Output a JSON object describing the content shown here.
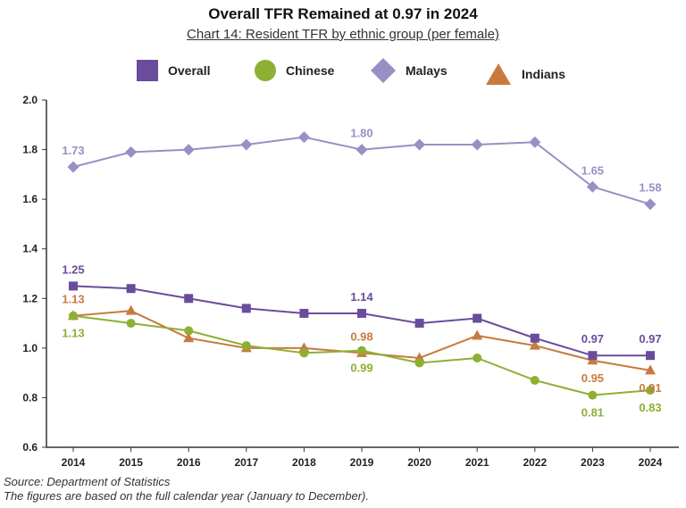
{
  "chart_data": {
    "type": "line",
    "title": "Overall TFR Remained at 0.97 in 2024",
    "subtitle": "Chart 14: Resident TFR by ethnic group (per female)",
    "xlabel": "",
    "ylabel": "",
    "categories": [
      "2014",
      "2015",
      "2016",
      "2017",
      "2018",
      "2019",
      "2020",
      "2021",
      "2022",
      "2023",
      "2024"
    ],
    "ylim": [
      0.6,
      2.0
    ],
    "yticks": [
      "0.6",
      "0.8",
      "1.0",
      "1.2",
      "1.4",
      "1.6",
      "1.8",
      "2.0"
    ],
    "grid": false,
    "legend_position": "top",
    "series": [
      {
        "name": "Overall",
        "marker": "square",
        "color": "#6a4c9c",
        "values": [
          1.25,
          1.24,
          1.2,
          1.16,
          1.14,
          1.14,
          1.1,
          1.12,
          1.04,
          0.97,
          0.97
        ]
      },
      {
        "name": "Chinese",
        "marker": "circle",
        "color": "#8db033",
        "values": [
          1.13,
          1.1,
          1.07,
          1.01,
          0.98,
          0.99,
          0.94,
          0.96,
          0.87,
          0.81,
          0.83
        ]
      },
      {
        "name": "Malays",
        "marker": "diamond",
        "color": "#9a8fc4",
        "values": [
          1.73,
          1.79,
          1.8,
          1.82,
          1.85,
          1.8,
          1.82,
          1.82,
          1.83,
          1.65,
          1.58
        ]
      },
      {
        "name": "Indians",
        "marker": "triangle",
        "color": "#c87a3e",
        "values": [
          1.13,
          1.15,
          1.04,
          1.0,
          1.0,
          0.98,
          0.96,
          1.05,
          1.01,
          0.95,
          0.91
        ]
      }
    ],
    "annotations": [
      {
        "series": "Malays",
        "category": "2014",
        "text": "1.73",
        "placement": "above"
      },
      {
        "series": "Malays",
        "category": "2019",
        "text": "1.80",
        "placement": "above"
      },
      {
        "series": "Malays",
        "category": "2023",
        "text": "1.65",
        "placement": "above"
      },
      {
        "series": "Malays",
        "category": "2024",
        "text": "1.58",
        "placement": "above"
      },
      {
        "series": "Overall",
        "category": "2014",
        "text": "1.25",
        "placement": "above"
      },
      {
        "series": "Overall",
        "category": "2019",
        "text": "1.14",
        "placement": "above"
      },
      {
        "series": "Overall",
        "category": "2023",
        "text": "0.97",
        "placement": "above"
      },
      {
        "series": "Overall",
        "category": "2024",
        "text": "0.97",
        "placement": "above"
      },
      {
        "series": "Indians",
        "category": "2014",
        "text": "1.13",
        "placement": "above"
      },
      {
        "series": "Indians",
        "category": "2019",
        "text": "0.98",
        "placement": "above"
      },
      {
        "series": "Indians",
        "category": "2023",
        "text": "0.95",
        "placement": "below"
      },
      {
        "series": "Indians",
        "category": "2024",
        "text": "0.91",
        "placement": "below"
      },
      {
        "series": "Chinese",
        "category": "2014",
        "text": "1.13",
        "placement": "below"
      },
      {
        "series": "Chinese",
        "category": "2019",
        "text": "0.99",
        "placement": "below"
      },
      {
        "series": "Chinese",
        "category": "2023",
        "text": "0.81",
        "placement": "below"
      },
      {
        "series": "Chinese",
        "category": "2024",
        "text": "0.83",
        "placement": "below"
      }
    ]
  },
  "source_line": "Source: Department of Statistics",
  "note_line": "The figures are based on the full calendar year (January to December)."
}
